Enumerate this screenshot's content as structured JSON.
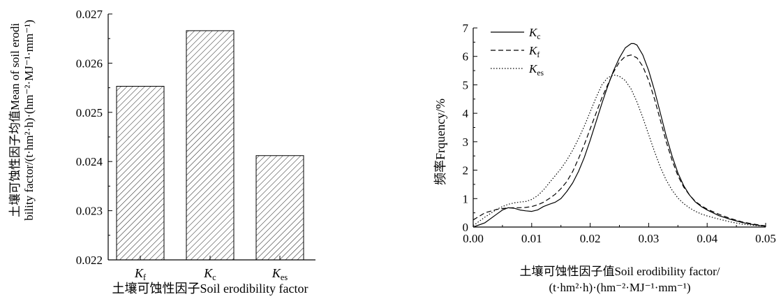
{
  "chart_data": [
    {
      "type": "bar",
      "categories": [
        {
          "base": "K",
          "sub": "f"
        },
        {
          "base": "K",
          "sub": "c"
        },
        {
          "base": "K",
          "sub": "es"
        }
      ],
      "values": [
        0.02553,
        0.02666,
        0.02412
      ],
      "ylim": [
        0.022,
        0.027
      ],
      "yticks": [
        "0.022",
        "0.023",
        "0.024",
        "0.025",
        "0.026",
        "0.027"
      ],
      "xlabel": "土壤可蚀性因子Soil erodibility factor",
      "ylabel_line1": "土壤可蚀性因子均值Mean of soil erodi",
      "ylabel_line2": "bility factor/(t·hm²·h)·(hm⁻²·MJ⁻¹·mm⁻¹)",
      "bar_fill": "hatched",
      "grid": false
    },
    {
      "type": "line",
      "xlim": [
        0,
        0.05
      ],
      "ylim": [
        0,
        7
      ],
      "xticks": [
        "0.00",
        "0.01",
        "0.02",
        "0.03",
        "0.04",
        "0.05"
      ],
      "yticks": [
        "0",
        "1",
        "2",
        "3",
        "4",
        "5",
        "6",
        "7"
      ],
      "ylabel": "频率Frquency/%",
      "xlabel_line1": "土壤可蚀性因子值Soil erodibility factor/",
      "xlabel_line2": "(t·hm²·h)·(hm⁻²·MJ⁻¹·mm⁻¹)",
      "legend_position": "top-left",
      "grid": false,
      "series": [
        {
          "name": {
            "base": "K",
            "sub": "c"
          },
          "style": "solid",
          "x": [
            0,
            0.002,
            0.004,
            0.005,
            0.006,
            0.007,
            0.008,
            0.009,
            0.01,
            0.011,
            0.012,
            0.013,
            0.014,
            0.015,
            0.016,
            0.017,
            0.018,
            0.019,
            0.02,
            0.021,
            0.022,
            0.023,
            0.024,
            0.025,
            0.026,
            0.027,
            0.0275,
            0.028,
            0.029,
            0.03,
            0.031,
            0.032,
            0.033,
            0.034,
            0.035,
            0.036,
            0.037,
            0.038,
            0.039,
            0.04,
            0.042,
            0.044,
            0.046,
            0.048,
            0.05
          ],
          "y": [
            0,
            0.15,
            0.45,
            0.6,
            0.68,
            0.66,
            0.6,
            0.57,
            0.55,
            0.6,
            0.72,
            0.8,
            0.87,
            1.0,
            1.25,
            1.55,
            1.95,
            2.45,
            3.05,
            3.7,
            4.35,
            4.95,
            5.5,
            5.95,
            6.3,
            6.45,
            6.45,
            6.4,
            6.05,
            5.5,
            4.8,
            4.0,
            3.2,
            2.5,
            1.9,
            1.45,
            1.12,
            0.88,
            0.72,
            0.6,
            0.4,
            0.27,
            0.16,
            0.08,
            0.03
          ]
        },
        {
          "name": {
            "base": "K",
            "sub": "f"
          },
          "style": "dashed",
          "x": [
            0,
            0.002,
            0.004,
            0.005,
            0.006,
            0.007,
            0.008,
            0.009,
            0.01,
            0.011,
            0.012,
            0.013,
            0.014,
            0.015,
            0.016,
            0.017,
            0.018,
            0.019,
            0.02,
            0.021,
            0.022,
            0.023,
            0.024,
            0.025,
            0.026,
            0.027,
            0.028,
            0.029,
            0.03,
            0.031,
            0.032,
            0.033,
            0.034,
            0.035,
            0.036,
            0.037,
            0.038,
            0.039,
            0.04,
            0.042,
            0.044,
            0.046,
            0.048,
            0.05
          ],
          "y": [
            0.25,
            0.5,
            0.62,
            0.65,
            0.67,
            0.68,
            0.68,
            0.69,
            0.72,
            0.78,
            0.87,
            1.0,
            1.15,
            1.35,
            1.6,
            1.95,
            2.4,
            2.9,
            3.45,
            4.0,
            4.55,
            5.0,
            5.45,
            5.8,
            6.0,
            6.05,
            5.95,
            5.65,
            5.15,
            4.5,
            3.75,
            3.0,
            2.35,
            1.8,
            1.4,
            1.12,
            0.9,
            0.75,
            0.63,
            0.45,
            0.3,
            0.18,
            0.1,
            0.04
          ]
        },
        {
          "name": {
            "base": "K",
            "sub": "es"
          },
          "style": "dotted",
          "x": [
            0,
            0.002,
            0.004,
            0.005,
            0.006,
            0.007,
            0.008,
            0.009,
            0.01,
            0.011,
            0.012,
            0.013,
            0.014,
            0.015,
            0.016,
            0.017,
            0.018,
            0.019,
            0.02,
            0.021,
            0.022,
            0.023,
            0.024,
            0.025,
            0.026,
            0.027,
            0.028,
            0.029,
            0.03,
            0.031,
            0.032,
            0.033,
            0.034,
            0.035,
            0.036,
            0.037,
            0.038,
            0.039,
            0.04,
            0.042,
            0.044,
            0.046,
            0.048,
            0.05
          ],
          "y": [
            0.05,
            0.35,
            0.62,
            0.72,
            0.8,
            0.85,
            0.88,
            0.9,
            0.97,
            1.1,
            1.3,
            1.55,
            1.8,
            2.05,
            2.35,
            2.7,
            3.1,
            3.55,
            4.05,
            4.55,
            5.0,
            5.25,
            5.35,
            5.3,
            5.15,
            4.85,
            4.4,
            3.85,
            3.25,
            2.65,
            2.1,
            1.65,
            1.3,
            1.02,
            0.82,
            0.67,
            0.55,
            0.46,
            0.39,
            0.28,
            0.18,
            0.1,
            0.06,
            0.03
          ]
        }
      ]
    }
  ]
}
